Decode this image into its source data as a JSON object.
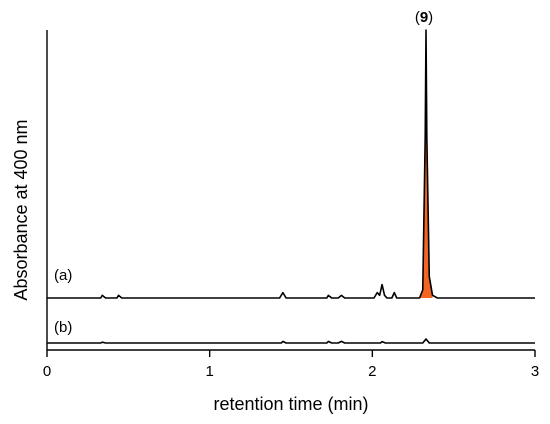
{
  "chart_data": {
    "type": "line",
    "title": "",
    "xlabel": "retention time (min)",
    "ylabel": "Absorbance at 400 nm",
    "xlim": [
      0,
      3
    ],
    "x_ticks": [
      "0",
      "1",
      "2",
      "3"
    ],
    "y_ticks": [],
    "grid": false,
    "legend": "none",
    "peak_annotation": {
      "open": "(",
      "number": "9",
      "close": ")",
      "x": 2.33
    },
    "highlight_color": "#F26522",
    "series": [
      {
        "name": "(a)",
        "baseline": 0,
        "points": [
          [
            0.0,
            0.0
          ],
          [
            0.33,
            0.0
          ],
          [
            0.34,
            0.01
          ],
          [
            0.36,
            0.0
          ],
          [
            0.43,
            0.0
          ],
          [
            0.44,
            0.01
          ],
          [
            0.46,
            0.0
          ],
          [
            1.43,
            0.0
          ],
          [
            1.45,
            0.02
          ],
          [
            1.47,
            0.0
          ],
          [
            1.72,
            0.0
          ],
          [
            1.73,
            0.01
          ],
          [
            1.75,
            0.0
          ],
          [
            1.79,
            0.0
          ],
          [
            1.81,
            0.01
          ],
          [
            1.83,
            0.0
          ],
          [
            2.01,
            0.0
          ],
          [
            2.03,
            0.02
          ],
          [
            2.045,
            0.01
          ],
          [
            2.06,
            0.05
          ],
          [
            2.075,
            0.01
          ],
          [
            2.09,
            0.0
          ],
          [
            2.12,
            0.0
          ],
          [
            2.135,
            0.02
          ],
          [
            2.15,
            0.0
          ],
          [
            2.29,
            0.0
          ],
          [
            2.31,
            0.03
          ],
          [
            2.325,
            0.6
          ],
          [
            2.33,
            1.0
          ],
          [
            2.335,
            0.6
          ],
          [
            2.35,
            0.08
          ],
          [
            2.37,
            0.01
          ],
          [
            2.4,
            0.0
          ],
          [
            3.0,
            0.0
          ]
        ]
      },
      {
        "name": "(b)",
        "baseline": 0,
        "points": [
          [
            0.0,
            0.0
          ],
          [
            0.33,
            0.0
          ],
          [
            0.34,
            0.003
          ],
          [
            0.36,
            0.0
          ],
          [
            1.44,
            0.0
          ],
          [
            1.45,
            0.006
          ],
          [
            1.47,
            0.0
          ],
          [
            1.72,
            0.0
          ],
          [
            1.73,
            0.006
          ],
          [
            1.75,
            0.0
          ],
          [
            1.79,
            0.0
          ],
          [
            1.81,
            0.006
          ],
          [
            1.83,
            0.0
          ],
          [
            2.05,
            0.0
          ],
          [
            2.06,
            0.005
          ],
          [
            2.08,
            0.0
          ],
          [
            2.31,
            0.0
          ],
          [
            2.33,
            0.015
          ],
          [
            2.35,
            0.0
          ],
          [
            3.0,
            0.0
          ]
        ]
      }
    ]
  }
}
